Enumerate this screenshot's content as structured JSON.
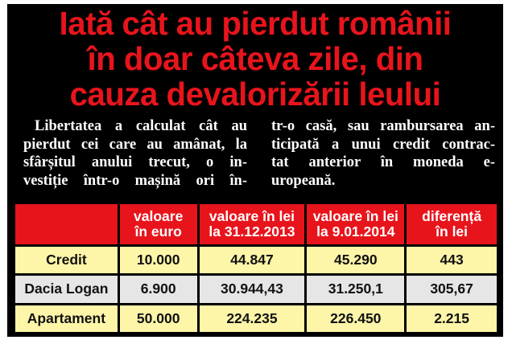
{
  "headline": {
    "lines": [
      "Iată cât au pierdut românii",
      "în doar câteva zile, din",
      "cauza devalorizării leului"
    ]
  },
  "article": {
    "left_lines": [
      "Libertatea a calculat cât au",
      "pierdut cei care au amânat, la",
      "sfârșitul anului trecut, o in-",
      "vestiție într-o mașină ori în-"
    ],
    "right_lines": [
      "tr-o casă, sau rambursarea an-",
      "ticipată a unui credit contrac-",
      "tat anterior în moneda e-",
      "uropeană."
    ]
  },
  "table": {
    "headers": [
      [
        ""
      ],
      [
        "valoare",
        "în euro"
      ],
      [
        "valoare în lei",
        "la 31.12.2013"
      ],
      [
        "valoare în lei",
        "la 9.01.2014"
      ],
      [
        "diferență",
        "în lei"
      ]
    ],
    "rows": [
      [
        "Credit",
        "10.000",
        "44.847",
        "45.290",
        "443"
      ],
      [
        "Dacia Logan",
        "6.900",
        "30.944,43",
        "31.250,1",
        "305,67"
      ],
      [
        "Apartament",
        "50.000",
        "224.235",
        "226.450",
        "2.215"
      ]
    ]
  },
  "colors": {
    "headline_red": "#e8141c",
    "header_red": "#e8141c",
    "row_yellow": "#fdf6a8",
    "row_grey": "#e6e6e6",
    "panel_black": "#000000"
  }
}
